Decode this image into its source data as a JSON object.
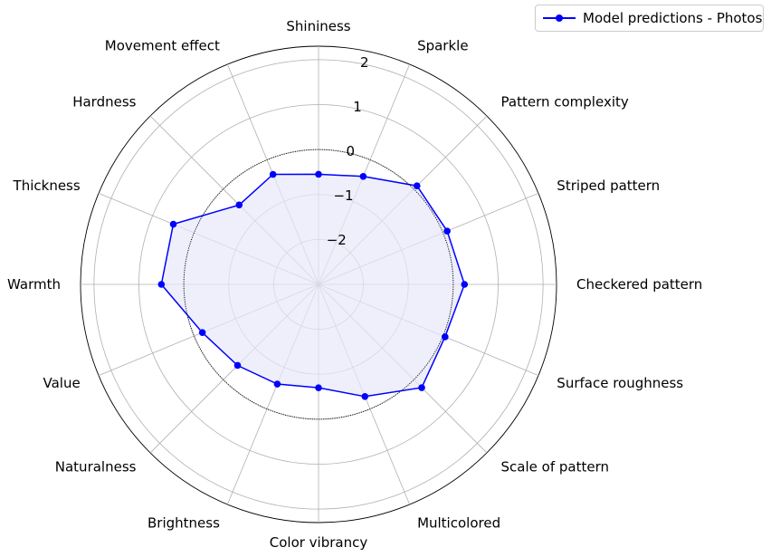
{
  "chart_data": {
    "type": "radar",
    "title": "",
    "legend_position": "top-right",
    "grid": true,
    "rlim": [
      -3,
      2.3
    ],
    "rticks": [
      -2,
      -1,
      0,
      1,
      2
    ],
    "rtick_labels": [
      "−2",
      "−1",
      "0",
      "1",
      "2"
    ],
    "categories": [
      "Shininess",
      "Sparkle",
      "Pattern complexity",
      "Striped pattern",
      "Checkered pattern",
      "Surface roughness",
      "Scale of pattern",
      "Multicolored",
      "Color vibrancy",
      "Brightness",
      "Naturalness",
      "Value",
      "Warmth",
      "Thickness",
      "Hardness",
      "Movement effect"
    ],
    "series": [
      {
        "name": "Model predictions - Photos",
        "color": "#0000ff",
        "fill": "#e8e8fb",
        "values": [
          -0.55,
          -0.4,
          0.1,
          0.1,
          0.25,
          0.05,
          0.25,
          -0.3,
          -0.7,
          -0.6,
          -0.45,
          -0.2,
          0.5,
          0.5,
          -0.5,
          -0.35
        ]
      }
    ]
  },
  "legend": {
    "label": "Model predictions - Photos"
  }
}
